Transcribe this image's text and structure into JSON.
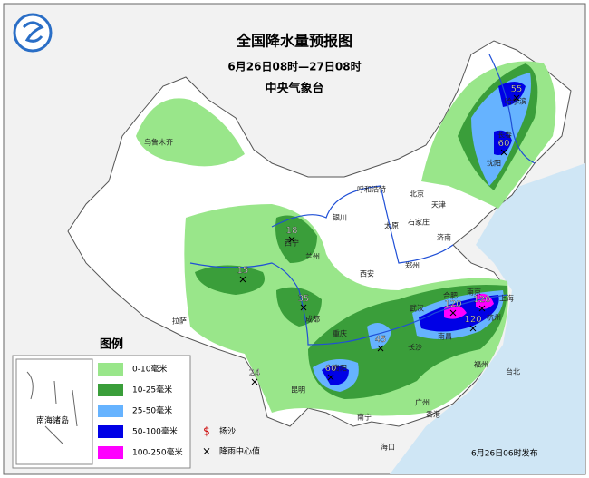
{
  "header": {
    "title": "全国降水量预报图",
    "subtitle": "6月26日08时—27日08时",
    "issuer": "中央气象台"
  },
  "legend": {
    "title": "图例",
    "items": [
      {
        "label": "0-10毫米",
        "color": "#99e68a"
      },
      {
        "label": "10-25毫米",
        "color": "#3a9e3a"
      },
      {
        "label": "25-50毫米",
        "color": "#66b3ff"
      },
      {
        "label": "50-100毫米",
        "color": "#0000e6"
      },
      {
        "label": "100-250毫米",
        "color": "#ff00ff"
      }
    ],
    "symbols": [
      {
        "mark": "$",
        "label": "扬沙"
      },
      {
        "mark": "×",
        "label": "降雨中心值"
      }
    ]
  },
  "inset": {
    "label": "南海诸岛"
  },
  "cities": [
    "乌鲁木齐",
    "呼和浩特",
    "北京",
    "天津",
    "太原",
    "石家庄",
    "济南",
    "郑州",
    "西安",
    "银川",
    "西宁",
    "兰州",
    "成都",
    "重庆",
    "拉萨",
    "昆明",
    "贵阳",
    "长沙",
    "南昌",
    "合肥",
    "南京",
    "上海",
    "杭州",
    "福州",
    "台北",
    "广州",
    "南宁",
    "香港",
    "海口",
    "沈阳",
    "长春",
    "哈尔滨",
    "武汉"
  ],
  "rain_centers": [
    55,
    60,
    18,
    15,
    35,
    45,
    60,
    120,
    120,
    120,
    24
  ],
  "footer": "6月26日06时发布"
}
